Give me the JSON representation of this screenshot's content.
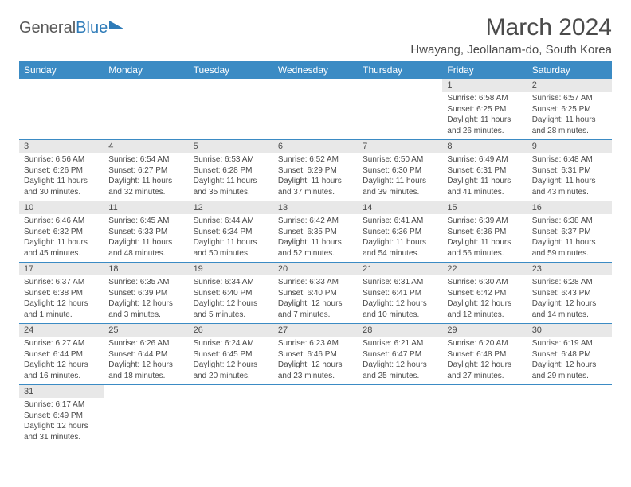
{
  "logo": {
    "text1": "General",
    "text2": "Blue"
  },
  "title": "March 2024",
  "location": "Hwayang, Jeollanam-do, South Korea",
  "dayHeaders": [
    "Sunday",
    "Monday",
    "Tuesday",
    "Wednesday",
    "Thursday",
    "Friday",
    "Saturday"
  ],
  "colors": {
    "header_bg": "#3b8bc4",
    "header_text": "#ffffff",
    "daynum_bg": "#e8e8e8",
    "border": "#3b8bc4",
    "text": "#4a4a4a"
  },
  "weeks": [
    [
      {
        "empty": true
      },
      {
        "empty": true
      },
      {
        "empty": true
      },
      {
        "empty": true
      },
      {
        "empty": true
      },
      {
        "day": "1",
        "sunrise": "Sunrise: 6:58 AM",
        "sunset": "Sunset: 6:25 PM",
        "daylight": "Daylight: 11 hours and 26 minutes."
      },
      {
        "day": "2",
        "sunrise": "Sunrise: 6:57 AM",
        "sunset": "Sunset: 6:25 PM",
        "daylight": "Daylight: 11 hours and 28 minutes."
      }
    ],
    [
      {
        "day": "3",
        "sunrise": "Sunrise: 6:56 AM",
        "sunset": "Sunset: 6:26 PM",
        "daylight": "Daylight: 11 hours and 30 minutes."
      },
      {
        "day": "4",
        "sunrise": "Sunrise: 6:54 AM",
        "sunset": "Sunset: 6:27 PM",
        "daylight": "Daylight: 11 hours and 32 minutes."
      },
      {
        "day": "5",
        "sunrise": "Sunrise: 6:53 AM",
        "sunset": "Sunset: 6:28 PM",
        "daylight": "Daylight: 11 hours and 35 minutes."
      },
      {
        "day": "6",
        "sunrise": "Sunrise: 6:52 AM",
        "sunset": "Sunset: 6:29 PM",
        "daylight": "Daylight: 11 hours and 37 minutes."
      },
      {
        "day": "7",
        "sunrise": "Sunrise: 6:50 AM",
        "sunset": "Sunset: 6:30 PM",
        "daylight": "Daylight: 11 hours and 39 minutes."
      },
      {
        "day": "8",
        "sunrise": "Sunrise: 6:49 AM",
        "sunset": "Sunset: 6:31 PM",
        "daylight": "Daylight: 11 hours and 41 minutes."
      },
      {
        "day": "9",
        "sunrise": "Sunrise: 6:48 AM",
        "sunset": "Sunset: 6:31 PM",
        "daylight": "Daylight: 11 hours and 43 minutes."
      }
    ],
    [
      {
        "day": "10",
        "sunrise": "Sunrise: 6:46 AM",
        "sunset": "Sunset: 6:32 PM",
        "daylight": "Daylight: 11 hours and 45 minutes."
      },
      {
        "day": "11",
        "sunrise": "Sunrise: 6:45 AM",
        "sunset": "Sunset: 6:33 PM",
        "daylight": "Daylight: 11 hours and 48 minutes."
      },
      {
        "day": "12",
        "sunrise": "Sunrise: 6:44 AM",
        "sunset": "Sunset: 6:34 PM",
        "daylight": "Daylight: 11 hours and 50 minutes."
      },
      {
        "day": "13",
        "sunrise": "Sunrise: 6:42 AM",
        "sunset": "Sunset: 6:35 PM",
        "daylight": "Daylight: 11 hours and 52 minutes."
      },
      {
        "day": "14",
        "sunrise": "Sunrise: 6:41 AM",
        "sunset": "Sunset: 6:36 PM",
        "daylight": "Daylight: 11 hours and 54 minutes."
      },
      {
        "day": "15",
        "sunrise": "Sunrise: 6:39 AM",
        "sunset": "Sunset: 6:36 PM",
        "daylight": "Daylight: 11 hours and 56 minutes."
      },
      {
        "day": "16",
        "sunrise": "Sunrise: 6:38 AM",
        "sunset": "Sunset: 6:37 PM",
        "daylight": "Daylight: 11 hours and 59 minutes."
      }
    ],
    [
      {
        "day": "17",
        "sunrise": "Sunrise: 6:37 AM",
        "sunset": "Sunset: 6:38 PM",
        "daylight": "Daylight: 12 hours and 1 minute."
      },
      {
        "day": "18",
        "sunrise": "Sunrise: 6:35 AM",
        "sunset": "Sunset: 6:39 PM",
        "daylight": "Daylight: 12 hours and 3 minutes."
      },
      {
        "day": "19",
        "sunrise": "Sunrise: 6:34 AM",
        "sunset": "Sunset: 6:40 PM",
        "daylight": "Daylight: 12 hours and 5 minutes."
      },
      {
        "day": "20",
        "sunrise": "Sunrise: 6:33 AM",
        "sunset": "Sunset: 6:40 PM",
        "daylight": "Daylight: 12 hours and 7 minutes."
      },
      {
        "day": "21",
        "sunrise": "Sunrise: 6:31 AM",
        "sunset": "Sunset: 6:41 PM",
        "daylight": "Daylight: 12 hours and 10 minutes."
      },
      {
        "day": "22",
        "sunrise": "Sunrise: 6:30 AM",
        "sunset": "Sunset: 6:42 PM",
        "daylight": "Daylight: 12 hours and 12 minutes."
      },
      {
        "day": "23",
        "sunrise": "Sunrise: 6:28 AM",
        "sunset": "Sunset: 6:43 PM",
        "daylight": "Daylight: 12 hours and 14 minutes."
      }
    ],
    [
      {
        "day": "24",
        "sunrise": "Sunrise: 6:27 AM",
        "sunset": "Sunset: 6:44 PM",
        "daylight": "Daylight: 12 hours and 16 minutes."
      },
      {
        "day": "25",
        "sunrise": "Sunrise: 6:26 AM",
        "sunset": "Sunset: 6:44 PM",
        "daylight": "Daylight: 12 hours and 18 minutes."
      },
      {
        "day": "26",
        "sunrise": "Sunrise: 6:24 AM",
        "sunset": "Sunset: 6:45 PM",
        "daylight": "Daylight: 12 hours and 20 minutes."
      },
      {
        "day": "27",
        "sunrise": "Sunrise: 6:23 AM",
        "sunset": "Sunset: 6:46 PM",
        "daylight": "Daylight: 12 hours and 23 minutes."
      },
      {
        "day": "28",
        "sunrise": "Sunrise: 6:21 AM",
        "sunset": "Sunset: 6:47 PM",
        "daylight": "Daylight: 12 hours and 25 minutes."
      },
      {
        "day": "29",
        "sunrise": "Sunrise: 6:20 AM",
        "sunset": "Sunset: 6:48 PM",
        "daylight": "Daylight: 12 hours and 27 minutes."
      },
      {
        "day": "30",
        "sunrise": "Sunrise: 6:19 AM",
        "sunset": "Sunset: 6:48 PM",
        "daylight": "Daylight: 12 hours and 29 minutes."
      }
    ],
    [
      {
        "day": "31",
        "sunrise": "Sunrise: 6:17 AM",
        "sunset": "Sunset: 6:49 PM",
        "daylight": "Daylight: 12 hours and 31 minutes."
      },
      {
        "empty": true
      },
      {
        "empty": true
      },
      {
        "empty": true
      },
      {
        "empty": true
      },
      {
        "empty": true
      },
      {
        "empty": true
      }
    ]
  ]
}
